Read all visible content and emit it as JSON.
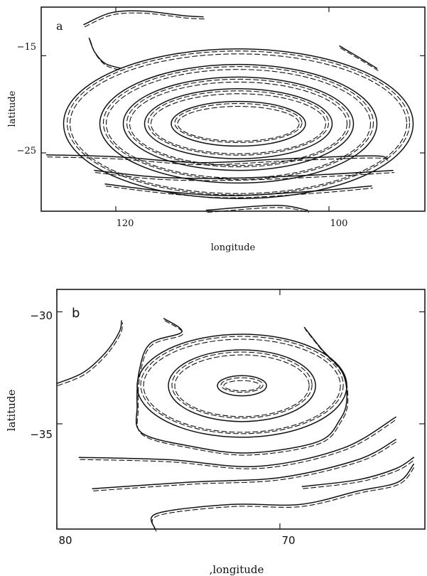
{
  "chart_data": [
    {
      "type": "contour",
      "panel_label": "a",
      "xlabel": "longitude",
      "ylabel": "latitude",
      "xlim": [
        127,
        91
      ],
      "ylim": [
        -31,
        -10
      ],
      "x_ticks": [
        120,
        100
      ],
      "y_ticks": [
        -15,
        -25
      ],
      "series_styles": [
        "solid",
        "dashed"
      ],
      "center": [
        108.5,
        -22.0
      ],
      "closed_contours": [
        {
          "rx": 6.3,
          "ry": 2.3
        },
        {
          "rx": 8.8,
          "ry": 3.6
        },
        {
          "rx": 10.8,
          "ry": 4.8
        },
        {
          "rx": 13.0,
          "ry": 6.1
        },
        {
          "rx": 16.4,
          "ry": 7.7
        }
      ],
      "open_contours": [
        [
          [
            126.5,
            -25.2
          ],
          [
            120,
            -25.4
          ],
          [
            112,
            -26.0
          ],
          [
            104,
            -25.6
          ],
          [
            96,
            -25.3
          ],
          [
            94.5,
            -25.6
          ]
        ],
        [
          [
            122,
            -26.8
          ],
          [
            116,
            -27.5
          ],
          [
            109,
            -27.6
          ],
          [
            100,
            -27.2
          ],
          [
            94,
            -26.8
          ]
        ],
        [
          [
            121,
            -28.2
          ],
          [
            115,
            -29.0
          ],
          [
            109,
            -29.4
          ],
          [
            101,
            -28.9
          ],
          [
            96,
            -28.4
          ]
        ],
        [
          [
            111.5,
            -30.9
          ],
          [
            105,
            -30.4
          ],
          [
            102,
            -30.9
          ]
        ],
        [
          [
            123,
            -11.8
          ],
          [
            120.5,
            -10.6
          ],
          [
            117.5,
            -10.4
          ],
          [
            113.5,
            -10.9
          ],
          [
            111.8,
            -11.0
          ]
        ],
        [
          [
            122.5,
            -13.2
          ],
          [
            122,
            -14.6
          ],
          [
            121,
            -15.8
          ],
          [
            119.5,
            -16.3
          ]
        ],
        [
          [
            99,
            -14.0
          ],
          [
            97,
            -15.3
          ],
          [
            95.5,
            -16.3
          ]
        ]
      ]
    },
    {
      "type": "contour",
      "panel_label": "b",
      "xlabel": ",longitude",
      "ylabel": "latitude",
      "xlim": [
        80,
        63.5
      ],
      "ylim": [
        -39.7,
        -29.0
      ],
      "x_ticks": [
        80,
        70
      ],
      "y_ticks": [
        -30,
        -35
      ],
      "series_styles": [
        "solid",
        "dashed"
      ],
      "center": [
        71.7,
        -33.3
      ],
      "closed_contours": [
        {
          "rx": 1.1,
          "ry": 0.45
        },
        {
          "rx": 3.3,
          "ry": 1.6
        },
        {
          "rx": 4.7,
          "ry": 2.3
        }
      ],
      "open_contours": [
        [
          [
            80,
            -33.2
          ],
          [
            78.8,
            -32.7
          ],
          [
            77.8,
            -31.8
          ],
          [
            77.2,
            -30.9
          ],
          [
            77.1,
            -30.4
          ]
        ],
        [
          [
            75.2,
            -30.3
          ],
          [
            74.4,
            -30.9
          ],
          [
            75.8,
            -31.4
          ],
          [
            76.3,
            -32.6
          ],
          [
            76.4,
            -34.2
          ],
          [
            76.2,
            -35.4
          ],
          [
            74.0,
            -36.0
          ],
          [
            71.4,
            -36.3
          ],
          [
            68.3,
            -35.8
          ],
          [
            67.3,
            -34.8
          ],
          [
            67.0,
            -33.9
          ],
          [
            67.2,
            -32.7
          ],
          [
            68.1,
            -31.7
          ],
          [
            68.9,
            -30.7
          ]
        ],
        [
          [
            79.0,
            -36.5
          ],
          [
            75,
            -36.6
          ],
          [
            71,
            -36.9
          ],
          [
            67.2,
            -36.1
          ],
          [
            64.8,
            -34.7
          ]
        ],
        [
          [
            78.4,
            -37.9
          ],
          [
            74,
            -37.6
          ],
          [
            70,
            -37.4
          ],
          [
            66.5,
            -36.6
          ],
          [
            64.8,
            -35.7
          ]
        ],
        [
          [
            69.0,
            -37.8
          ],
          [
            66.5,
            -37.5
          ],
          [
            64.8,
            -37.0
          ],
          [
            64.0,
            -36.5
          ]
        ],
        [
          [
            75.6,
            -39.7
          ],
          [
            75.5,
            -39.0
          ],
          [
            72.2,
            -38.6
          ],
          [
            69.1,
            -38.6
          ],
          [
            66.5,
            -38.0
          ],
          [
            64.7,
            -37.6
          ],
          [
            64.0,
            -36.8
          ]
        ]
      ]
    }
  ]
}
